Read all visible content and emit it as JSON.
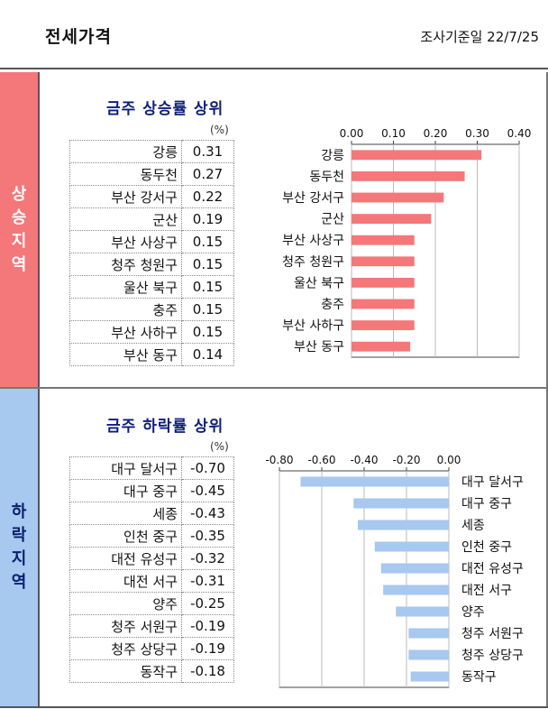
{
  "header": {
    "title": "전세가격",
    "ref_date": "조사기준일 22/7/25"
  },
  "rise": {
    "side_label": [
      "상",
      "승",
      "지",
      "역"
    ],
    "title": "금주 상승률 상위",
    "unit": "(%)",
    "rows": [
      {
        "name": "강릉",
        "value": "0.31"
      },
      {
        "name": "동두천",
        "value": "0.27"
      },
      {
        "name": "부산 강서구",
        "value": "0.22"
      },
      {
        "name": "군산",
        "value": "0.19"
      },
      {
        "name": "부산 사상구",
        "value": "0.15"
      },
      {
        "name": "청주 청원구",
        "value": "0.15"
      },
      {
        "name": "울산 북구",
        "value": "0.15"
      },
      {
        "name": "충주",
        "value": "0.15"
      },
      {
        "name": "부산 사하구",
        "value": "0.15"
      },
      {
        "name": "부산 동구",
        "value": "0.14"
      }
    ]
  },
  "fall": {
    "side_label": [
      "하",
      "락",
      "지",
      "역"
    ],
    "title": "금주 하락률 상위",
    "unit": "(%)",
    "rows": [
      {
        "name": "대구 달서구",
        "value": "-0.70"
      },
      {
        "name": "대구 중구",
        "value": "-0.45"
      },
      {
        "name": "세종",
        "value": "-0.43"
      },
      {
        "name": "인천 중구",
        "value": "-0.35"
      },
      {
        "name": "대전 유성구",
        "value": "-0.32"
      },
      {
        "name": "대전 서구",
        "value": "-0.31"
      },
      {
        "name": "양주",
        "value": "-0.25"
      },
      {
        "name": "청주 서원구",
        "value": "-0.19"
      },
      {
        "name": "청주 상당구",
        "value": "-0.19"
      },
      {
        "name": "동작구",
        "value": "-0.18"
      }
    ]
  },
  "chart_data": [
    {
      "type": "bar",
      "orientation": "horizontal",
      "categories": [
        "강릉",
        "동두천",
        "부산 강서구",
        "군산",
        "부산 사상구",
        "청주 청원구",
        "울산 북구",
        "충주",
        "부산 사하구",
        "부산 동구"
      ],
      "values": [
        0.31,
        0.27,
        0.22,
        0.19,
        0.15,
        0.15,
        0.15,
        0.15,
        0.15,
        0.14
      ],
      "xlim": [
        0,
        0.4
      ],
      "xticks": [
        "0.00",
        "0.10",
        "0.20",
        "0.30",
        "0.40"
      ],
      "axis_position": "top",
      "grid": true,
      "color": "#f4777a"
    },
    {
      "type": "bar",
      "orientation": "horizontal",
      "categories": [
        "대구 달서구",
        "대구 중구",
        "세종",
        "인천 중구",
        "대전 유성구",
        "대전 서구",
        "양주",
        "청주 서원구",
        "청주 상당구",
        "동작구"
      ],
      "values": [
        -0.7,
        -0.45,
        -0.43,
        -0.35,
        -0.32,
        -0.31,
        -0.25,
        -0.19,
        -0.19,
        -0.18
      ],
      "xlim": [
        -0.8,
        0
      ],
      "xticks": [
        "-0.80",
        "-0.60",
        "-0.40",
        "-0.20",
        "0.00"
      ],
      "axis_position": "top",
      "grid": true,
      "color": "#a7c8ef"
    }
  ]
}
